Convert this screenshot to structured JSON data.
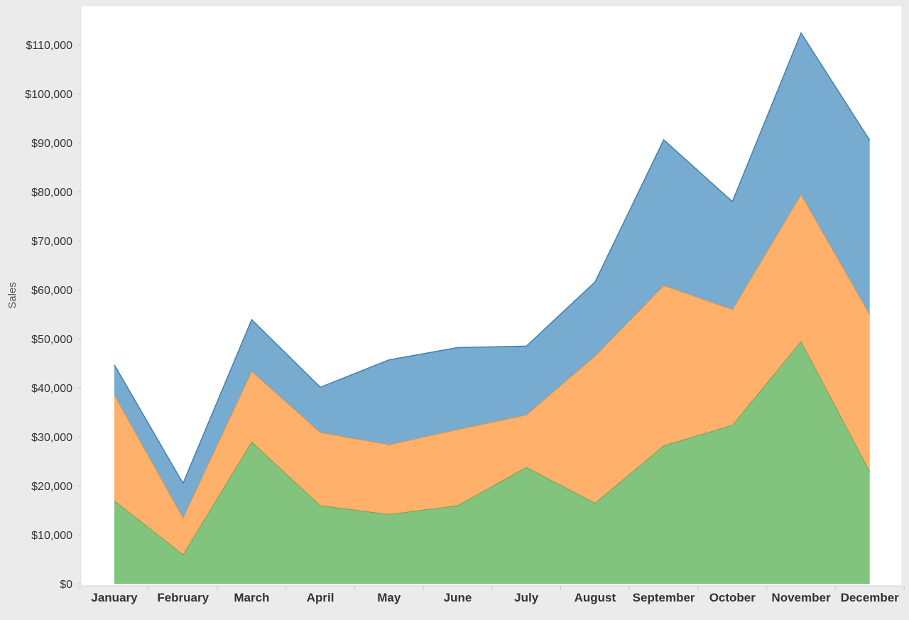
{
  "chart_data": {
    "type": "area",
    "stacked": true,
    "title": "",
    "xlabel": "",
    "ylabel": "Sales",
    "ylim": [
      0,
      117000
    ],
    "yticks": [
      0,
      10000,
      20000,
      30000,
      40000,
      50000,
      60000,
      70000,
      80000,
      90000,
      100000,
      110000
    ],
    "ytick_labels": [
      "$0",
      "$10,000",
      "$20,000",
      "$30,000",
      "$40,000",
      "$50,000",
      "$60,000",
      "$70,000",
      "$80,000",
      "$90,000",
      "$100,000",
      "$110,000"
    ],
    "categories": [
      "January",
      "February",
      "March",
      "April",
      "May",
      "June",
      "July",
      "August",
      "September",
      "October",
      "November",
      "December"
    ],
    "grid": false,
    "legend": "none",
    "series": [
      {
        "color": "#82c47d",
        "stroke": "#5a9e50",
        "values": [
          17000,
          6000,
          29000,
          16000,
          14200,
          16000,
          23800,
          16500,
          28200,
          32400,
          49500,
          23000
        ]
      },
      {
        "color": "#ffb06a",
        "stroke": "#f28e2b",
        "values": [
          21600,
          7500,
          14400,
          14900,
          14200,
          15500,
          10700,
          30000,
          32700,
          23600,
          30000,
          32000
        ]
      },
      {
        "color": "#77abd0",
        "stroke": "#3f80b4",
        "values": [
          6100,
          7000,
          10500,
          9200,
          17300,
          16700,
          14000,
          15100,
          29700,
          22000,
          32900,
          35500
        ]
      }
    ]
  }
}
